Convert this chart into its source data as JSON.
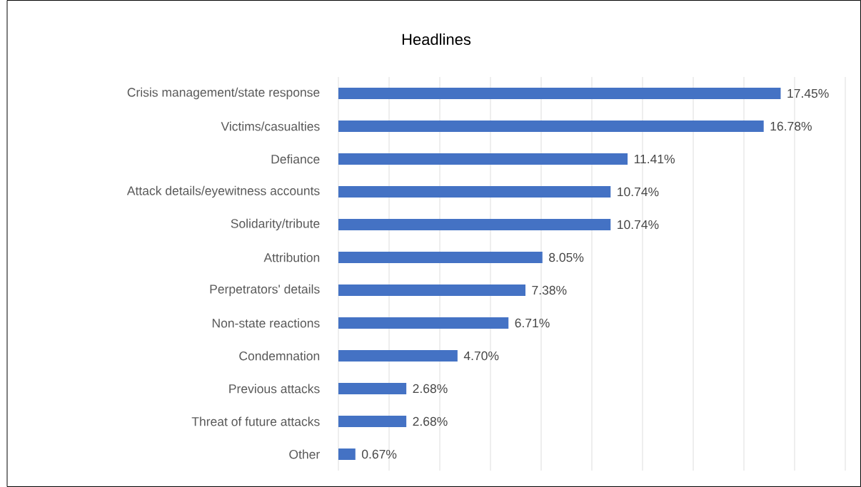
{
  "chart_data": {
    "type": "bar",
    "orientation": "horizontal",
    "title": "Headlines",
    "categories": [
      "Crisis management/state response",
      "Victims/casualties",
      "Defiance",
      "Attack details/eyewitness accounts",
      "Solidarity/tribute",
      "Attribution",
      "Perpetrators' details",
      "Non-state reactions",
      "Condemnation",
      "Previous attacks",
      "Threat of future attacks",
      "Other"
    ],
    "values": [
      17.45,
      16.78,
      11.41,
      10.74,
      10.74,
      8.05,
      7.38,
      6.71,
      4.7,
      2.68,
      2.68,
      0.67
    ],
    "value_labels": [
      "17.45%",
      "16.78%",
      "11.41%",
      "10.74%",
      "10.74%",
      "8.05%",
      "7.38%",
      "6.71%",
      "4.70%",
      "2.68%",
      "2.68%",
      "0.67%"
    ],
    "color": "#4472c4",
    "xlim": [
      0,
      20
    ],
    "xticks": [
      {
        "value": 0,
        "label": null
      },
      {
        "value": 2,
        "label": null
      },
      {
        "value": 4,
        "label": null
      },
      {
        "value": 6,
        "label": null
      },
      {
        "value": 8,
        "label": null
      },
      {
        "value": 10,
        "label": null
      },
      {
        "value": 12,
        "label": null
      },
      {
        "value": 14,
        "label": null
      },
      {
        "value": 16,
        "label": null
      },
      {
        "value": 18,
        "label": null
      },
      {
        "value": 20,
        "label": null
      }
    ],
    "grid": "x",
    "tick_labels": "y"
  }
}
